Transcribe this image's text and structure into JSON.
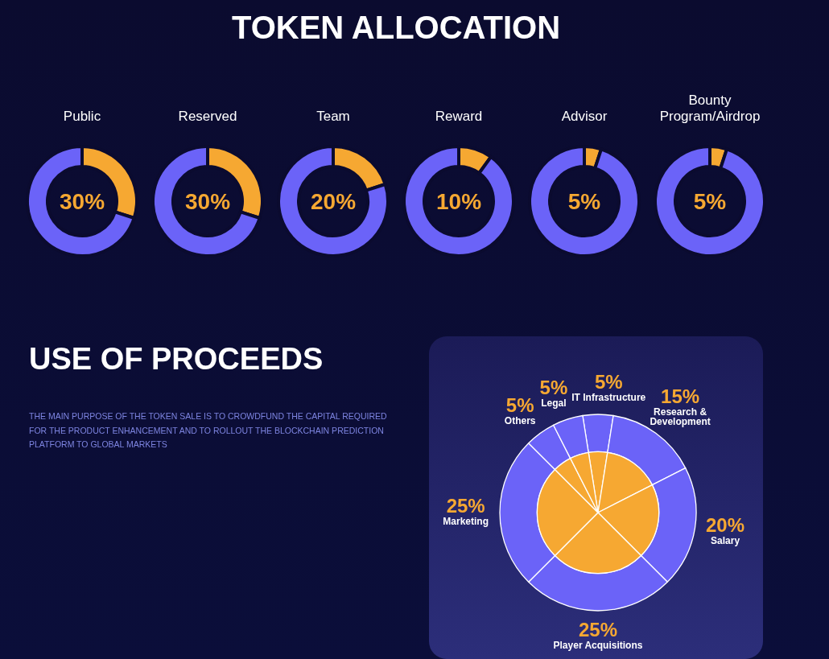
{
  "chart_data": [
    {
      "type": "other",
      "title": "TOKEN ALLOCATION"
    },
    {
      "type": "donut",
      "title": "Public",
      "categories": [
        null,
        null
      ],
      "values": [
        30,
        70
      ],
      "colors": [
        "#f6a832",
        "#6b63f8"
      ],
      "annotations": [
        "30%"
      ]
    },
    {
      "type": "donut",
      "title": "Reserved",
      "categories": [
        null,
        null
      ],
      "values": [
        30,
        70
      ],
      "colors": [
        "#f6a832",
        "#6b63f8"
      ],
      "annotations": [
        "30%"
      ]
    },
    {
      "type": "donut",
      "title": "Team",
      "categories": [
        null,
        null
      ],
      "values": [
        20,
        80
      ],
      "colors": [
        "#f6a832",
        "#6b63f8"
      ],
      "annotations": [
        "20%"
      ]
    },
    {
      "type": "donut",
      "title": "Reward",
      "categories": [
        null,
        null
      ],
      "values": [
        10,
        90
      ],
      "colors": [
        "#f6a832",
        "#6b63f8"
      ],
      "annotations": [
        "10%"
      ]
    },
    {
      "type": "donut",
      "title": "Advisor",
      "categories": [
        null,
        null
      ],
      "values": [
        5,
        95
      ],
      "colors": [
        "#f6a832",
        "#6b63f8"
      ],
      "annotations": [
        "5%"
      ]
    },
    {
      "type": "donut",
      "title": "Bounty Program/Airdrop",
      "categories": [
        null,
        null
      ],
      "values": [
        5,
        95
      ],
      "colors": [
        "#f6a832",
        "#6b63f8"
      ],
      "annotations": [
        "5%"
      ]
    },
    {
      "type": "pie",
      "title": "USE OF PROCEEDS",
      "annotations": [
        "THE MAIN PURPOSE OF THE TOKEN SALE IS TO CROWDFUND THE CAPITAL REQUIRED FOR THE PRODUCT ENHANCEMENT AND TO ROLLOUT THE BLOCKCHAIN PREDICTION PLATFORM TO GLOBAL MARKETS"
      ],
      "categories": [
        "IT Infrastructure",
        "Research & Development",
        "Salary",
        "Player Acquisitions",
        "Marketing",
        "Others",
        "Legal"
      ],
      "series": [
        {
          "color": "#6b63f8",
          "values": [
            5,
            15,
            20,
            25,
            25,
            5,
            5
          ],
          "value_labels": [
            "5%",
            "15%",
            "20%",
            "25%",
            "25%",
            "5%",
            "5%"
          ]
        },
        {
          "color": "#f6a832",
          "values": [
            5,
            15,
            20,
            25,
            25,
            5,
            5
          ]
        }
      ]
    }
  ]
}
